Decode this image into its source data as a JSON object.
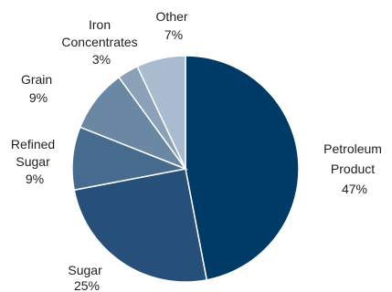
{
  "chart_data": {
    "type": "pie",
    "title": "",
    "slices": [
      {
        "label": [
          "Petroleum",
          "Product"
        ],
        "pct": "47%",
        "value": 47,
        "color": "#003a66"
      },
      {
        "label": [
          "Sugar"
        ],
        "pct": "25%",
        "value": 25,
        "color": "#26507a"
      },
      {
        "label": [
          "Refined",
          "Sugar"
        ],
        "pct": "9%",
        "value": 9,
        "color": "#476b8f"
      },
      {
        "label": [
          "Grain"
        ],
        "pct": "9%",
        "value": 9,
        "color": "#6a87a4"
      },
      {
        "label": [
          "Iron",
          "Concentrates"
        ],
        "pct": "3%",
        "value": 3,
        "color": "#8aa1b9"
      },
      {
        "label": [
          "Other"
        ],
        "pct": "7%",
        "value": 7,
        "color": "#a9bccf"
      }
    ],
    "legend": "none",
    "grid": false
  }
}
